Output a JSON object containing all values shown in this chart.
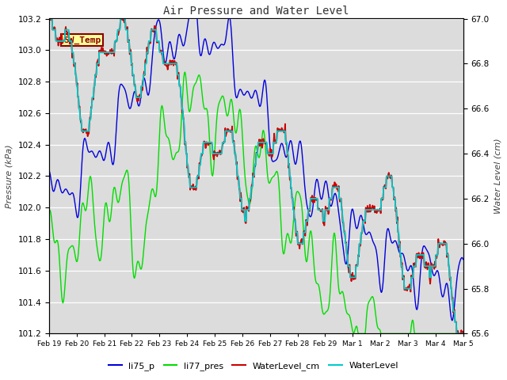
{
  "title": "Air Pressure and Water Level",
  "ylabel_left": "Pressure (kPa)",
  "ylabel_right": "Water Level (cm)",
  "ylim_left": [
    101.2,
    103.2
  ],
  "ylim_right": [
    65.6,
    67.0
  ],
  "bg_color": "#dcdcdc",
  "annotation_text": "SW_Temp",
  "annotation_bg": "#ffff99",
  "annotation_fg": "#880000",
  "line_colors": {
    "li75_p": "#0000dd",
    "li77_pres": "#00dd00",
    "WaterLevel_cm": "#cc0000",
    "WaterLevel": "#00cccc"
  },
  "legend_labels": [
    "li75_p",
    "li77_pres",
    "WaterLevel_cm",
    "WaterLevel"
  ],
  "xtick_labels": [
    "Feb 19",
    "Feb 20",
    "Feb 21",
    "Feb 22",
    "Feb 23",
    "Feb 24",
    "Feb 25",
    "Feb 26",
    "Feb 27",
    "Feb 28",
    "Feb 29",
    "Mar 1",
    "Mar 2",
    "Mar 3",
    "Mar 4",
    "Mar 5"
  ],
  "n_days": 15,
  "pts_per_day": 48
}
